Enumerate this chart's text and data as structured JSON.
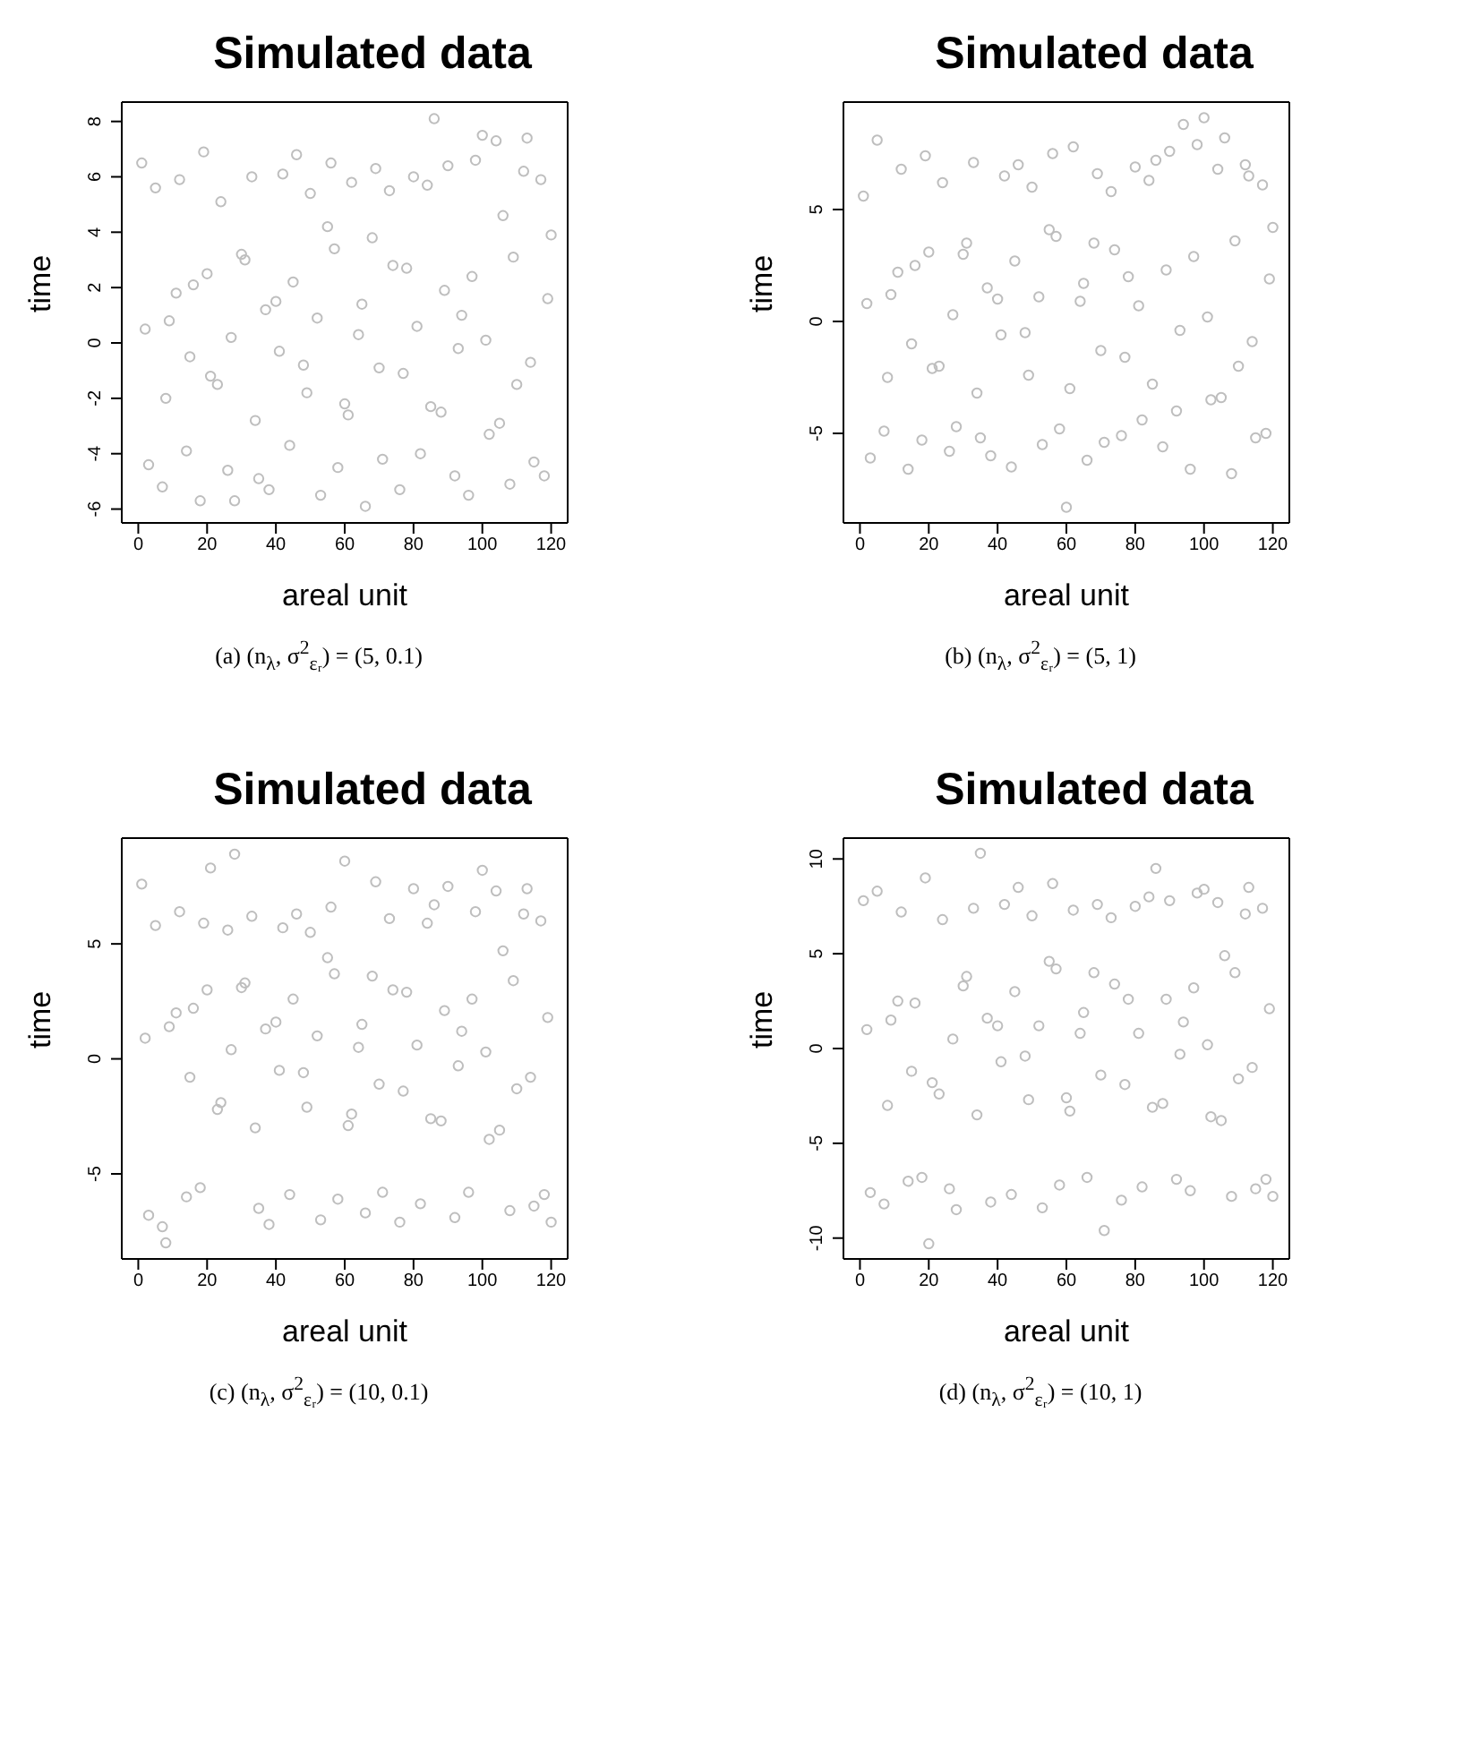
{
  "chart_data": [
    {
      "type": "scatter",
      "title": "Simulated data",
      "xlabel": "areal unit",
      "ylabel": "time",
      "color": "#bebebe",
      "marker": "circle",
      "xlim": [
        -4.8,
        124.8
      ],
      "ylim": [
        -6.5,
        8.7
      ],
      "xticks": [
        0,
        20,
        40,
        60,
        80,
        100,
        120
      ],
      "yticks": [
        -6,
        -4,
        -2,
        0,
        2,
        4,
        6,
        8
      ],
      "annotations": [
        "(a) (n$_{λ}$, σ$^{2}$$_{εᵣ}$) = (5, 0.1)"
      ],
      "x": [
        1,
        3,
        5,
        7,
        9,
        12,
        14,
        16,
        18,
        19,
        21,
        24,
        26,
        28,
        30,
        33,
        35,
        38,
        40,
        42,
        44,
        46,
        48,
        50,
        53,
        55,
        56,
        58,
        60,
        62,
        64,
        66,
        68,
        69,
        71,
        73,
        76,
        78,
        80,
        82,
        84,
        86,
        88,
        90,
        92,
        94,
        96,
        98,
        100,
        102,
        104,
        106,
        108,
        110,
        112,
        113,
        115,
        117,
        118,
        120,
        2,
        8,
        11,
        15,
        20,
        23,
        27,
        31,
        34,
        37,
        41,
        45,
        49,
        52,
        57,
        61,
        65,
        70,
        74,
        77,
        81,
        85,
        89,
        93,
        97,
        101,
        105,
        109,
        114,
        119
      ],
      "values": [
        6.5,
        -4.4,
        5.6,
        -5.2,
        0.8,
        5.9,
        -3.9,
        2.1,
        -5.7,
        6.9,
        -1.2,
        5.1,
        -4.6,
        -5.7,
        3.2,
        6.0,
        -4.9,
        -5.3,
        1.5,
        6.1,
        -3.7,
        6.8,
        -0.8,
        5.4,
        -5.5,
        4.2,
        6.5,
        -4.5,
        -2.2,
        5.8,
        0.3,
        -5.9,
        3.8,
        6.3,
        -4.2,
        5.5,
        -5.3,
        2.7,
        6.0,
        -4.0,
        5.7,
        8.1,
        -2.5,
        6.4,
        -4.8,
        1.0,
        -5.5,
        6.6,
        7.5,
        -3.3,
        7.3,
        4.6,
        -5.1,
        -1.5,
        6.2,
        7.4,
        -4.3,
        5.9,
        -4.8,
        3.9,
        0.5,
        -2.0,
        1.8,
        -0.5,
        2.5,
        -1.5,
        0.2,
        3.0,
        -2.8,
        1.2,
        -0.3,
        2.2,
        -1.8,
        0.9,
        3.4,
        -2.6,
        1.4,
        -0.9,
        2.8,
        -1.1,
        0.6,
        -2.3,
        1.9,
        -0.2,
        2.4,
        0.1,
        -2.9,
        3.1,
        -0.7,
        1.6
      ]
    },
    {
      "type": "scatter",
      "title": "Simulated data",
      "xlabel": "areal unit",
      "ylabel": "time",
      "color": "#bebebe",
      "marker": "circle",
      "xlim": [
        -4.8,
        124.8
      ],
      "ylim": [
        -9.0,
        9.8
      ],
      "xticks": [
        0,
        20,
        40,
        60,
        80,
        100,
        120
      ],
      "yticks": [
        -5,
        0,
        5
      ],
      "annotations": [
        "(b) (n$_{λ}$, σ$^{2}$$_{εᵣ}$) = (5, 1)"
      ],
      "x": [
        1,
        3,
        5,
        7,
        9,
        12,
        14,
        16,
        18,
        19,
        21,
        24,
        26,
        28,
        30,
        33,
        35,
        38,
        40,
        42,
        44,
        46,
        48,
        50,
        53,
        55,
        56,
        58,
        60,
        62,
        64,
        66,
        68,
        69,
        71,
        73,
        76,
        78,
        80,
        82,
        84,
        86,
        88,
        90,
        92,
        94,
        96,
        98,
        100,
        102,
        104,
        106,
        108,
        110,
        112,
        113,
        115,
        117,
        118,
        120,
        2,
        8,
        11,
        15,
        20,
        23,
        27,
        31,
        34,
        37,
        41,
        45,
        49,
        52,
        57,
        61,
        65,
        70,
        74,
        77,
        81,
        85,
        89,
        93,
        97,
        101,
        105,
        109,
        114,
        119
      ],
      "values": [
        5.6,
        -6.1,
        8.1,
        -4.9,
        1.2,
        6.8,
        -6.6,
        2.5,
        -5.3,
        7.4,
        -2.1,
        6.2,
        -5.8,
        -4.7,
        3.0,
        7.1,
        -5.2,
        -6.0,
        1.0,
        6.5,
        -6.5,
        7.0,
        -0.5,
        6.0,
        -5.5,
        4.1,
        7.5,
        -4.8,
        -8.3,
        7.8,
        0.9,
        -6.2,
        3.5,
        6.6,
        -5.4,
        5.8,
        -5.1,
        2.0,
        6.9,
        -4.4,
        6.3,
        7.2,
        -5.6,
        7.6,
        -4.0,
        8.8,
        -6.6,
        7.9,
        9.1,
        -3.5,
        6.8,
        8.2,
        -6.8,
        -2.0,
        7.0,
        6.5,
        -5.2,
        6.1,
        -5.0,
        4.2,
        0.8,
        -2.5,
        2.2,
        -1.0,
        3.1,
        -2.0,
        0.3,
        3.5,
        -3.2,
        1.5,
        -0.6,
        2.7,
        -2.4,
        1.1,
        3.8,
        -3.0,
        1.7,
        -1.3,
        3.2,
        -1.6,
        0.7,
        -2.8,
        2.3,
        -0.4,
        2.9,
        0.2,
        -3.4,
        3.6,
        -0.9,
        1.9
      ]
    },
    {
      "type": "scatter",
      "title": "Simulated data",
      "xlabel": "areal unit",
      "ylabel": "time",
      "color": "#bebebe",
      "marker": "circle",
      "xlim": [
        -4.8,
        124.8
      ],
      "ylim": [
        -8.7,
        9.6
      ],
      "xticks": [
        0,
        20,
        40,
        60,
        80,
        100,
        120
      ],
      "yticks": [
        -5,
        0,
        5
      ],
      "annotations": [
        "(c) (n$_{λ}$, σ$^{2}$$_{εᵣ}$) = (10, 0.1)"
      ],
      "x": [
        1,
        3,
        5,
        7,
        9,
        12,
        14,
        16,
        18,
        19,
        21,
        24,
        26,
        28,
        30,
        33,
        35,
        38,
        40,
        42,
        44,
        46,
        48,
        50,
        53,
        55,
        56,
        58,
        60,
        62,
        64,
        66,
        68,
        69,
        71,
        73,
        76,
        78,
        80,
        82,
        84,
        86,
        88,
        90,
        92,
        94,
        96,
        98,
        100,
        102,
        104,
        106,
        108,
        110,
        112,
        113,
        115,
        117,
        118,
        120,
        2,
        8,
        11,
        15,
        20,
        23,
        27,
        31,
        34,
        37,
        41,
        45,
        49,
        52,
        57,
        61,
        65,
        70,
        74,
        77,
        81,
        85,
        89,
        93,
        97,
        101,
        105,
        109,
        114,
        119
      ],
      "values": [
        7.6,
        -6.8,
        5.8,
        -7.3,
        1.4,
        6.4,
        -6.0,
        2.2,
        -5.6,
        5.9,
        8.3,
        -1.9,
        5.6,
        8.9,
        3.1,
        6.2,
        -6.5,
        -7.2,
        1.6,
        5.7,
        -5.9,
        6.3,
        -0.6,
        5.5,
        -7.0,
        4.4,
        6.6,
        -6.1,
        8.6,
        -2.4,
        0.5,
        -6.7,
        3.6,
        7.7,
        -5.8,
        6.1,
        -7.1,
        2.9,
        7.4,
        -6.3,
        5.9,
        6.7,
        -2.7,
        7.5,
        -6.9,
        1.2,
        -5.8,
        6.4,
        8.2,
        -3.5,
        7.3,
        4.7,
        -6.6,
        -1.3,
        6.3,
        7.4,
        -6.4,
        6.0,
        -5.9,
        -7.1,
        0.9,
        -8.0,
        2.0,
        -0.8,
        3.0,
        -2.2,
        0.4,
        3.3,
        -3.0,
        1.3,
        -0.5,
        2.6,
        -2.1,
        1.0,
        3.7,
        -2.9,
        1.5,
        -1.1,
        3.0,
        -1.4,
        0.6,
        -2.6,
        2.1,
        -0.3,
        2.6,
        0.3,
        -3.1,
        3.4,
        -0.8,
        1.8
      ]
    },
    {
      "type": "scatter",
      "title": "Simulated data",
      "xlabel": "areal unit",
      "ylabel": "time",
      "color": "#bebebe",
      "marker": "circle",
      "xlim": [
        -4.8,
        124.8
      ],
      "ylim": [
        -11.1,
        11.1
      ],
      "xticks": [
        0,
        20,
        40,
        60,
        80,
        100,
        120
      ],
      "yticks": [
        -10,
        -5,
        0,
        5,
        10
      ],
      "annotations": [
        "(d) (n$_{λ}$, σ$^{2}$$_{εᵣ}$) = (10, 1)"
      ],
      "x": [
        1,
        3,
        5,
        7,
        9,
        12,
        14,
        16,
        18,
        19,
        21,
        24,
        26,
        28,
        30,
        33,
        35,
        38,
        40,
        42,
        44,
        46,
        48,
        50,
        53,
        55,
        56,
        58,
        60,
        62,
        64,
        66,
        68,
        69,
        71,
        73,
        76,
        78,
        80,
        82,
        84,
        86,
        88,
        90,
        92,
        94,
        96,
        98,
        100,
        102,
        104,
        106,
        108,
        110,
        112,
        113,
        115,
        117,
        118,
        120,
        2,
        8,
        11,
        15,
        20,
        23,
        27,
        31,
        34,
        37,
        41,
        45,
        49,
        52,
        57,
        61,
        65,
        70,
        74,
        77,
        81,
        85,
        89,
        93,
        97,
        101,
        105,
        109,
        114,
        119
      ],
      "values": [
        7.8,
        -7.6,
        8.3,
        -8.2,
        1.5,
        7.2,
        -7.0,
        2.4,
        -6.8,
        9.0,
        -1.8,
        6.8,
        -7.4,
        -8.5,
        3.3,
        7.4,
        10.3,
        -8.1,
        1.2,
        7.6,
        -7.7,
        8.5,
        -0.4,
        7.0,
        -8.4,
        4.6,
        8.7,
        -7.2,
        -2.6,
        7.3,
        0.8,
        -6.8,
        4.0,
        7.6,
        -9.6,
        6.9,
        -8.0,
        2.6,
        7.5,
        -7.3,
        8.0,
        9.5,
        -2.9,
        7.8,
        -6.9,
        1.4,
        -7.5,
        8.2,
        8.4,
        -3.6,
        7.7,
        4.9,
        -7.8,
        -1.6,
        7.1,
        8.5,
        -7.4,
        7.4,
        -6.9,
        -7.8,
        1.0,
        -3.0,
        2.5,
        -1.2,
        -10.3,
        -2.4,
        0.5,
        3.8,
        -3.5,
        1.6,
        -0.7,
        3.0,
        -2.7,
        1.2,
        4.2,
        -3.3,
        1.9,
        -1.4,
        3.4,
        -1.9,
        0.8,
        -3.1,
        2.6,
        -0.3,
        3.2,
        0.2,
        -3.8,
        4.0,
        -1.0,
        2.1
      ]
    }
  ]
}
